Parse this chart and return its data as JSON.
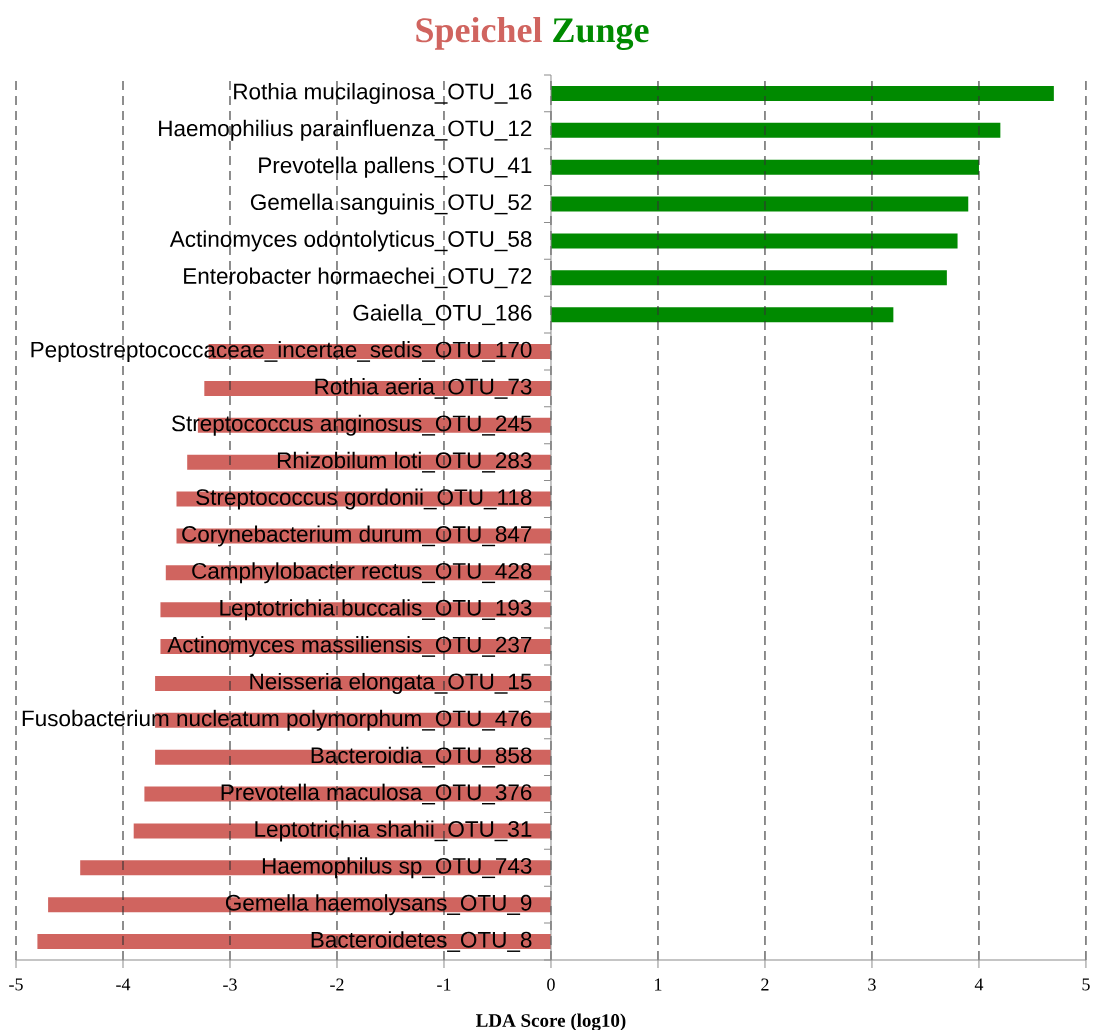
{
  "chart_data": {
    "type": "bar",
    "orientation": "horizontal",
    "xlabel": "LDA Score (log10)",
    "categories": [
      "Rothia mucilaginosa_OTU_16",
      "Haemophilius parainfluenza_OTU_12",
      "Prevotella pallens_OTU_41",
      "Gemella sanguinis_OTU_52",
      "Actinomyces odontolyticus_OTU_58",
      "Enterobacter hormaechei_OTU_72",
      "Gaiella_OTU_186",
      "Peptostreptococcaceae_incertae_sedis_OTU_170",
      "Rothia aeria_OTU_73",
      "Streptococcus anginosus_OTU_245",
      "Rhizobilum loti_OTU_283",
      "Streptococcus gordonii_OTU_118",
      "Corynebacterium durum_OTU_847",
      "Camphylobacter rectus_OTU_428",
      "Leptotrichia buccalis_OTU_193",
      "Actinomyces massiliensis_OTU_237",
      "Neisseria elongata_OTU_15",
      "Fusobacterium nucleatum polymorphum_OTU_476",
      "Bacteroidia_OTU_858",
      "Prevotella maculosa_OTU_376",
      "Leptotrichia shahii_OTU_31",
      "Haemophilus sp_OTU_743",
      "Gemella haemolysans_OTU_9",
      "Bacteroidetes_OTU_8"
    ],
    "series": [
      {
        "name": "Speichel",
        "color": "#d0645f",
        "values": [
          null,
          null,
          null,
          null,
          null,
          null,
          null,
          -3.2,
          -3.24,
          -3.3,
          -3.4,
          -3.5,
          -3.5,
          -3.6,
          -3.65,
          -3.65,
          -3.7,
          -3.7,
          -3.7,
          -3.8,
          -3.9,
          -4.4,
          -4.7,
          -4.8
        ]
      },
      {
        "name": "Zunge",
        "color": "#008a00",
        "values": [
          4.7,
          4.2,
          4.0,
          3.9,
          3.8,
          3.7,
          3.2,
          null,
          null,
          null,
          null,
          null,
          null,
          null,
          null,
          null,
          null,
          null,
          null,
          null,
          null,
          null,
          null,
          null
        ]
      }
    ],
    "xlim": [
      -5,
      5
    ],
    "xticks": [
      -5,
      -4,
      -3,
      -2,
      -1,
      0,
      1,
      2,
      3,
      4,
      5
    ],
    "grid": "x",
    "legend": "top"
  }
}
